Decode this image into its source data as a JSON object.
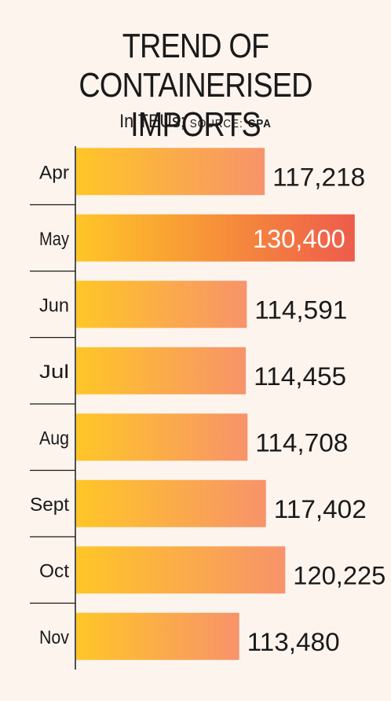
{
  "chart_data": {
    "type": "bar",
    "orientation": "horizontal",
    "title": "TREND OF CONTAINERISED IMPORTS",
    "subtitle_unit": "In TEUs;",
    "source_label": "SOURCE:",
    "source_name": "CPA",
    "categories": [
      "Apr",
      "May",
      "Jun",
      "Jul",
      "Aug",
      "Sept",
      "Oct",
      "Nov"
    ],
    "values": [
      117218,
      130400,
      114591,
      114455,
      114708,
      117402,
      120225,
      113480
    ],
    "value_labels": [
      "117,218",
      "130,400",
      "114,591",
      "114,455",
      "114,708",
      "117,402",
      "120,225",
      "113,480"
    ],
    "highlight_index": 1,
    "colors": {
      "bar_start": "#ffc627",
      "bar_end": "#f7936a",
      "highlight_end": "#ee5c4c",
      "background": "#fdf4ee",
      "axis": "#1a1a1a"
    },
    "grid": false,
    "legend": "none"
  }
}
